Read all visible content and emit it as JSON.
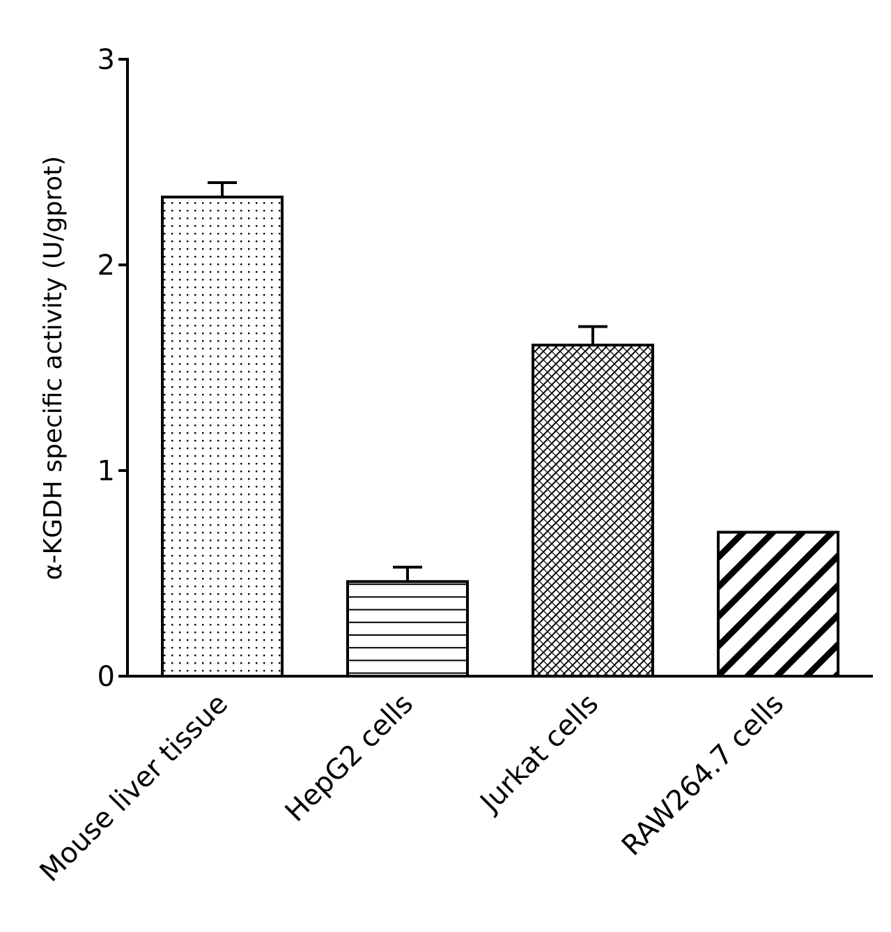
{
  "chart_data": {
    "type": "bar",
    "title": "",
    "xlabel": "",
    "ylabel": "α-KGDH specific activity (U/gprot)",
    "ylim": [
      0,
      3
    ],
    "yticks": [
      "0",
      "1",
      "2",
      "3"
    ],
    "categories": [
      "Mouse liver tissue",
      "HepG2 cells",
      "Jurkat cells",
      "RAW264.7 cells"
    ],
    "values": [
      2.33,
      0.46,
      1.61,
      0.7
    ],
    "errors": [
      0.07,
      0.07,
      0.09,
      0.0
    ],
    "patterns": [
      "dots",
      "horizontal-lines",
      "crosshatch",
      "diagonal-lines"
    ],
    "grid": false,
    "legend": "none"
  }
}
